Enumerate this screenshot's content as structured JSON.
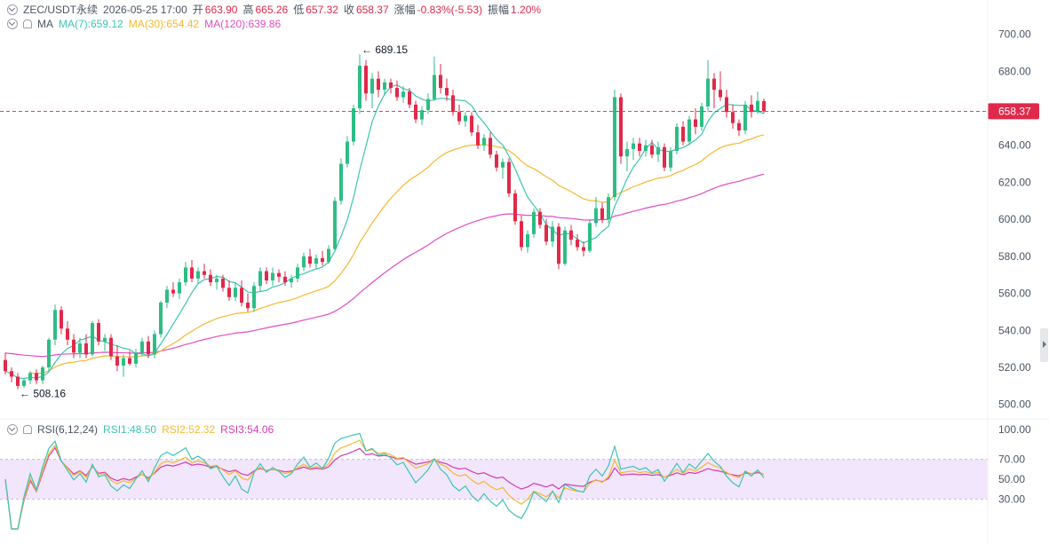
{
  "header": {
    "symbol": "ZEC/USDT永续",
    "datetime": "2026-05-25 17:00",
    "open_label": "开",
    "open": "663.90",
    "high_label": "高",
    "high": "665.26",
    "low_label": "低",
    "low": "657.32",
    "close_label": "收",
    "close": "658.37",
    "change_label": "涨幅",
    "change": "-0.83%(-5.53)",
    "amp_label": "振幅",
    "amp": "1.20%"
  },
  "ma_legend": {
    "label": "MA",
    "ma7": "MA(7):659.12",
    "ma30": "MA(30):654.42",
    "ma120": "MA(120):639.86"
  },
  "rsi_legend": {
    "label": "RSI(6,12,24)",
    "rsi1": "RSI1:48.50",
    "rsi2": "RSI2:52.32",
    "rsi3": "RSI3:54.06"
  },
  "colors": {
    "up": "#2ebd85",
    "down": "#e0294a",
    "ma7": "#3cc4b4",
    "ma30": "#f5b82e",
    "ma120": "#e44cc4",
    "rsi1": "#3cc4b4",
    "rsi2": "#f5b82e",
    "rsi3": "#d23cb4",
    "text": "#4b5563"
  },
  "chart_data": [
    {
      "type": "candlestick",
      "yticks": [
        "700.00",
        "680.00",
        "660.00",
        "640.00",
        "620.00",
        "600.00",
        "580.00",
        "560.00",
        "540.00",
        "520.00",
        "500.00"
      ],
      "ylim": [
        497,
        707
      ],
      "current_price": "658.37",
      "annotations": {
        "high": "689.15",
        "low": "508.16"
      },
      "candles": [
        [
          524.0,
          528.0,
          516.0,
          518.0
        ],
        [
          518.0,
          520.0,
          512.0,
          515.0
        ],
        [
          515.0,
          517.0,
          508.2,
          510.0
        ],
        [
          510.0,
          514.0,
          509.0,
          513.0
        ],
        [
          513.0,
          518.0,
          511.0,
          517.0
        ],
        [
          517.0,
          519.0,
          511.0,
          513.0
        ],
        [
          513.0,
          521.0,
          511.0,
          520.0
        ],
        [
          520.0,
          536.0,
          518.0,
          535.0
        ],
        [
          535.0,
          554.0,
          532.0,
          551.0
        ],
        [
          551.0,
          553.0,
          538.0,
          541.0
        ],
        [
          541.0,
          545.0,
          532.0,
          535.0
        ],
        [
          535.0,
          538.0,
          525.0,
          528.0
        ],
        [
          528.0,
          536.0,
          525.0,
          533.0
        ],
        [
          533.0,
          538.0,
          525.0,
          527.0
        ],
        [
          527.0,
          545.0,
          526.0,
          544.0
        ],
        [
          544.0,
          546.0,
          532.0,
          534.0
        ],
        [
          534.0,
          538.0,
          529.0,
          536.0
        ],
        [
          536.0,
          538.0,
          524.0,
          526.0
        ],
        [
          526.0,
          532.0,
          518.0,
          521.0
        ],
        [
          521.0,
          527.0,
          515.0,
          525.0
        ],
        [
          525.0,
          529.0,
          521.0,
          522.0
        ],
        [
          522.0,
          530.0,
          520.0,
          528.0
        ],
        [
          528.0,
          536.0,
          526.0,
          534.0
        ],
        [
          534.0,
          537.0,
          525.0,
          527.0
        ],
        [
          527.0,
          540.0,
          525.0,
          538.0
        ],
        [
          538.0,
          556.0,
          536.0,
          555.0
        ],
        [
          555.0,
          564.0,
          552.0,
          562.0
        ],
        [
          562.0,
          566.0,
          558.0,
          560.0
        ],
        [
          560.0,
          568.0,
          557.0,
          566.0
        ],
        [
          566.0,
          577.0,
          564.0,
          574.0
        ],
        [
          574.0,
          578.0,
          566.0,
          568.0
        ],
        [
          568.0,
          574.0,
          565.0,
          572.0
        ],
        [
          572.0,
          576.0,
          568.0,
          570.0
        ],
        [
          570.0,
          573.0,
          564.0,
          566.0
        ],
        [
          566.0,
          570.0,
          562.0,
          568.0
        ],
        [
          568.0,
          570.0,
          561.0,
          563.0
        ],
        [
          563.0,
          567.0,
          556.0,
          558.0
        ],
        [
          558.0,
          566.0,
          556.0,
          563.0
        ],
        [
          563.0,
          567.0,
          553.0,
          555.0
        ],
        [
          555.0,
          560.0,
          550.0,
          552.0
        ],
        [
          552.0,
          566.0,
          550.0,
          564.0
        ],
        [
          564.0,
          574.0,
          561.0,
          572.0
        ],
        [
          572.0,
          574.0,
          565.0,
          567.0
        ],
        [
          567.0,
          574.0,
          564.0,
          571.0
        ],
        [
          571.0,
          573.0,
          566.0,
          569.0
        ],
        [
          569.0,
          572.0,
          564.0,
          566.0
        ],
        [
          566.0,
          570.0,
          563.0,
          568.0
        ],
        [
          568.0,
          576.0,
          566.0,
          574.0
        ],
        [
          574.0,
          582.0,
          572.0,
          580.0
        ],
        [
          580.0,
          584.0,
          574.0,
          576.0
        ],
        [
          576.0,
          581.0,
          573.0,
          579.0
        ],
        [
          579.0,
          583.0,
          575.0,
          577.0
        ],
        [
          577.0,
          586.0,
          576.0,
          584.0
        ],
        [
          584.0,
          612.0,
          583.0,
          610.0
        ],
        [
          610.0,
          633.0,
          608.0,
          630.0
        ],
        [
          630.0,
          645.0,
          628.0,
          642.0
        ],
        [
          642.0,
          662.0,
          640.0,
          660.0
        ],
        [
          660.0,
          689.15,
          657.0,
          683.0
        ],
        [
          683.0,
          686.0,
          664.0,
          668.0
        ],
        [
          668.0,
          679.0,
          660.0,
          676.0
        ],
        [
          676.0,
          680.0,
          666.0,
          670.0
        ],
        [
          670.0,
          676.0,
          667.0,
          674.0
        ],
        [
          674.0,
          676.0,
          668.0,
          671.0
        ],
        [
          671.0,
          675.0,
          664.0,
          666.0
        ],
        [
          666.0,
          672.0,
          663.0,
          669.0
        ],
        [
          669.0,
          671.0,
          660.0,
          662.0
        ],
        [
          662.0,
          664.0,
          652.0,
          654.0
        ],
        [
          654.0,
          661.0,
          651.0,
          659.0
        ],
        [
          659.0,
          668.0,
          657.0,
          665.0
        ],
        [
          665.0,
          688.0,
          664.0,
          678.0
        ],
        [
          678.0,
          684.0,
          668.0,
          671.0
        ],
        [
          671.0,
          676.0,
          664.0,
          667.0
        ],
        [
          667.0,
          670.0,
          656.0,
          658.0
        ],
        [
          658.0,
          662.0,
          651.0,
          653.0
        ],
        [
          653.0,
          658.0,
          650.0,
          656.0
        ],
        [
          656.0,
          658.0,
          645.0,
          647.0
        ],
        [
          647.0,
          651.0,
          638.0,
          640.0
        ],
        [
          640.0,
          646.0,
          637.0,
          644.0
        ],
        [
          644.0,
          647.0,
          633.0,
          635.0
        ],
        [
          635.0,
          637.0,
          626.0,
          628.0
        ],
        [
          628.0,
          633.0,
          622.0,
          631.0
        ],
        [
          631.0,
          633.0,
          612.0,
          614.0
        ],
        [
          614.0,
          616.0,
          597.0,
          599.0
        ],
        [
          599.0,
          602.0,
          583.0,
          585.0
        ],
        [
          585.0,
          594.0,
          582.0,
          592.0
        ],
        [
          592.0,
          606.0,
          590.0,
          604.0
        ],
        [
          604.0,
          606.0,
          595.0,
          597.0
        ],
        [
          597.0,
          600.0,
          586.0,
          588.0
        ],
        [
          588.0,
          599.0,
          585.0,
          596.0
        ],
        [
          596.0,
          598.0,
          573.0,
          576.0
        ],
        [
          576.0,
          596.0,
          575.0,
          594.0
        ],
        [
          594.0,
          597.0,
          586.0,
          589.0
        ],
        [
          589.0,
          592.0,
          583.0,
          585.0
        ],
        [
          585.0,
          588.0,
          580.0,
          583.0
        ],
        [
          583.0,
          600.0,
          582.0,
          598.0
        ],
        [
          598.0,
          612.0,
          596.0,
          606.0
        ],
        [
          606.0,
          609.0,
          598.0,
          600.0
        ],
        [
          600.0,
          614.0,
          598.0,
          612.0
        ],
        [
          612.0,
          670.0,
          610.0,
          666.0
        ],
        [
          666.0,
          668.0,
          630.0,
          634.0
        ],
        [
          634.0,
          642.0,
          626.0,
          638.0
        ],
        [
          638.0,
          644.0,
          632.0,
          641.0
        ],
        [
          641.0,
          644.0,
          634.0,
          637.0
        ],
        [
          637.0,
          643.0,
          634.0,
          640.0
        ],
        [
          640.0,
          643.0,
          633.0,
          635.0
        ],
        [
          635.0,
          642.0,
          631.0,
          639.0
        ],
        [
          639.0,
          641.0,
          626.0,
          628.0
        ],
        [
          628.0,
          639.0,
          626.0,
          637.0
        ],
        [
          637.0,
          652.0,
          635.0,
          650.0
        ],
        [
          650.0,
          653.0,
          640.0,
          642.0
        ],
        [
          642.0,
          656.0,
          640.0,
          654.0
        ],
        [
          654.0,
          660.0,
          646.0,
          650.0
        ],
        [
          650.0,
          663.0,
          648.0,
          661.0
        ],
        [
          661.0,
          686.0,
          658.0,
          676.0
        ],
        [
          676.0,
          679.0,
          660.0,
          670.0
        ],
        [
          670.0,
          680.0,
          664.0,
          666.0
        ],
        [
          666.0,
          670.0,
          655.0,
          658.0
        ],
        [
          658.0,
          662.0,
          649.0,
          652.0
        ],
        [
          652.0,
          654.0,
          645.0,
          648.0
        ],
        [
          648.0,
          664.0,
          646.0,
          662.0
        ],
        [
          662.0,
          667.0,
          655.0,
          658.0
        ],
        [
          658.0,
          669.0,
          657.0,
          664.0
        ],
        [
          663.9,
          665.26,
          657.32,
          658.37
        ]
      ]
    },
    {
      "type": "line",
      "yticks": [
        "100.00",
        "70.00",
        "50.00",
        "30.00"
      ],
      "ylim": [
        0,
        100
      ],
      "band": [
        30,
        70
      ]
    }
  ]
}
